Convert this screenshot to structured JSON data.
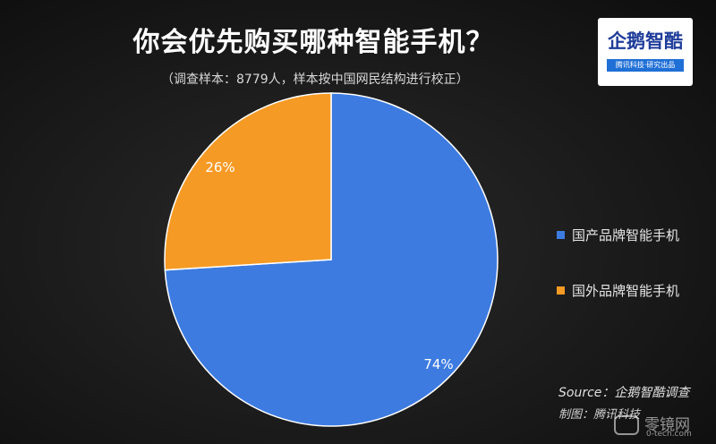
{
  "chart_data": {
    "type": "pie",
    "title": "你会优先购买哪种智能手机？",
    "subtitle": "（调查样本：8779人，样本按中国网民结构进行校正）",
    "categories": [
      "国产品牌智能手机",
      "国外品牌智能手机"
    ],
    "values": [
      74,
      26
    ],
    "data_labels": [
      "74%",
      "26%"
    ],
    "colors": [
      "#3d7be0",
      "#f59a25"
    ],
    "legend_position": "right"
  },
  "logo": {
    "text": "企鹅智酷",
    "tagline": "腾讯科技·研究出品"
  },
  "footer": {
    "source": "Source：企鹅智酷调查",
    "maker": "制图：腾讯科技"
  },
  "watermark": {
    "cn": "零镜网",
    "en": "0-tech.com"
  }
}
